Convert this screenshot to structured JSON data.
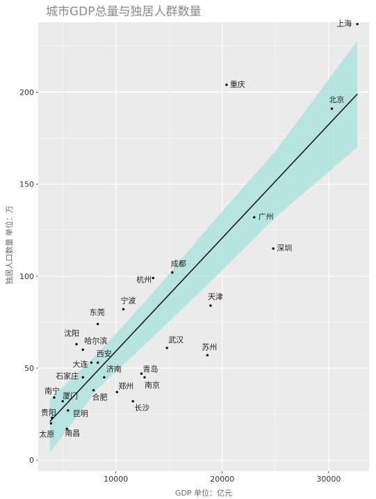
{
  "chart_data": {
    "type": "scatter",
    "title": "城市GDP总量与独居人群数量",
    "xlabel": "GDP 单位：亿元",
    "ylabel": "独居人口数量 单位：万",
    "xlim": [
      2700,
      33800
    ],
    "ylim": [
      -6,
      238
    ],
    "xticks": [
      10000,
      20000,
      30000
    ],
    "yticks": [
      0,
      50,
      100,
      150,
      200
    ],
    "grid": true,
    "legend": "none",
    "colors": {
      "panel": "#ebebeb",
      "grid": "#ffffff",
      "point": "#000000",
      "fit_line": "#1a1a1a",
      "ribbon": "#aee3de"
    },
    "points": [
      {
        "city": "上海",
        "x": 32700,
        "y": 237
      },
      {
        "city": "重庆",
        "x": 20400,
        "y": 204
      },
      {
        "city": "北京",
        "x": 30300,
        "y": 191
      },
      {
        "city": "广州",
        "x": 23000,
        "y": 132
      },
      {
        "city": "深圳",
        "x": 24800,
        "y": 115
      },
      {
        "city": "成都",
        "x": 15300,
        "y": 102
      },
      {
        "city": "杭州",
        "x": 13500,
        "y": 99
      },
      {
        "city": "天津",
        "x": 18900,
        "y": 84
      },
      {
        "city": "宁波",
        "x": 10700,
        "y": 82
      },
      {
        "city": "东莞",
        "x": 8300,
        "y": 74
      },
      {
        "city": "沈阳",
        "x": 6300,
        "y": 63
      },
      {
        "city": "哈尔滨",
        "x": 6900,
        "y": 60
      },
      {
        "city": "武汉",
        "x": 14800,
        "y": 61
      },
      {
        "city": "苏州",
        "x": 18600,
        "y": 57
      },
      {
        "city": "西安",
        "x": 8300,
        "y": 53
      },
      {
        "city": "大连",
        "x": 7700,
        "y": 53
      },
      {
        "city": "济南",
        "x": 8900,
        "y": 45
      },
      {
        "city": "青岛",
        "x": 12400,
        "y": 47
      },
      {
        "city": "南京",
        "x": 12700,
        "y": 45
      },
      {
        "city": "石家庄",
        "x": 6900,
        "y": 45
      },
      {
        "city": "郑州",
        "x": 10100,
        "y": 37
      },
      {
        "city": "合肥",
        "x": 7900,
        "y": 38
      },
      {
        "city": "南宁",
        "x": 4200,
        "y": 34
      },
      {
        "city": "厦门",
        "x": 5000,
        "y": 32
      },
      {
        "city": "长沙",
        "x": 11600,
        "y": 32
      },
      {
        "city": "昆明",
        "x": 5500,
        "y": 27
      },
      {
        "city": "贵阳",
        "x": 4000,
        "y": 23
      },
      {
        "city": "太原",
        "x": 3900,
        "y": 20
      },
      {
        "city": "南昌",
        "x": 5400,
        "y": 17
      }
    ],
    "fit_line": {
      "x": [
        3800,
        32700
      ],
      "y": [
        21,
        199
      ]
    },
    "confidence_band": {
      "x": [
        3800,
        8300,
        13500,
        18900,
        25000,
        32700
      ],
      "upper": [
        33,
        58,
        91,
        128,
        168,
        228
      ],
      "lower": [
        4,
        39,
        67,
        97,
        132,
        170
      ]
    }
  }
}
